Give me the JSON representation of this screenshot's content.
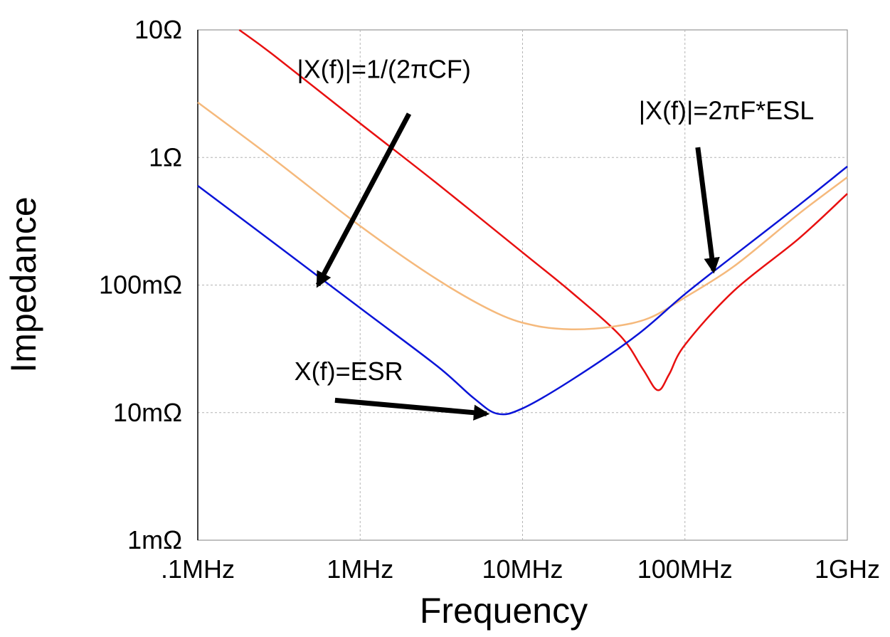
{
  "chart_data": {
    "type": "line",
    "title": "",
    "xlabel": "Frequency",
    "ylabel": "Impedance",
    "xscale": "log",
    "yscale": "log",
    "xlim": [
      100000,
      1000000000
    ],
    "ylim": [
      0.001,
      10
    ],
    "grid": true,
    "x_ticks": [
      {
        "value": 100000,
        "label": ".1MHz"
      },
      {
        "value": 1000000,
        "label": "1MHz"
      },
      {
        "value": 10000000,
        "label": "10MHz"
      },
      {
        "value": 100000000,
        "label": "100MHz"
      },
      {
        "value": 1000000000,
        "label": "1GHz"
      }
    ],
    "y_ticks": [
      {
        "value": 10,
        "label": "10Ω"
      },
      {
        "value": 1,
        "label": "1Ω"
      },
      {
        "value": 0.1,
        "label": "100mΩ"
      },
      {
        "value": 0.01,
        "label": "10mΩ"
      },
      {
        "value": 0.001,
        "label": "1mΩ"
      }
    ],
    "series": [
      {
        "color": "#e81010",
        "points": [
          [
            180000,
            10
          ],
          [
            300000,
            6.2
          ],
          [
            1000000,
            1.85
          ],
          [
            3000000,
            0.62
          ],
          [
            10000000,
            0.18
          ],
          [
            20000000,
            0.088
          ],
          [
            40000000,
            0.04
          ],
          [
            55000000,
            0.022
          ],
          [
            68000000,
            0.015
          ],
          [
            80000000,
            0.02
          ],
          [
            100000000,
            0.034
          ],
          [
            200000000,
            0.09
          ],
          [
            500000000,
            0.23
          ],
          [
            1000000000,
            0.52
          ]
        ]
      },
      {
        "color": "#f5b97c",
        "points": [
          [
            100000,
            2.7
          ],
          [
            300000,
            0.95
          ],
          [
            1000000,
            0.29
          ],
          [
            3000000,
            0.11
          ],
          [
            7000000,
            0.06
          ],
          [
            12000000,
            0.048
          ],
          [
            20000000,
            0.045
          ],
          [
            35000000,
            0.047
          ],
          [
            60000000,
            0.055
          ],
          [
            100000000,
            0.08
          ],
          [
            200000000,
            0.14
          ],
          [
            500000000,
            0.36
          ],
          [
            1000000000,
            0.7
          ]
        ]
      },
      {
        "color": "#0a14d8",
        "points": [
          [
            100000,
            0.6
          ],
          [
            300000,
            0.21
          ],
          [
            1000000,
            0.066
          ],
          [
            3000000,
            0.023
          ],
          [
            5000000,
            0.013
          ],
          [
            7000000,
            0.0098
          ],
          [
            10000000,
            0.0108
          ],
          [
            20000000,
            0.018
          ],
          [
            50000000,
            0.04
          ],
          [
            100000000,
            0.085
          ],
          [
            200000000,
            0.17
          ],
          [
            500000000,
            0.42
          ],
          [
            1000000000,
            0.85
          ]
        ]
      }
    ],
    "annotations": [
      {
        "text": "|X(f)|=1/(2πCF)",
        "anchor": [
          1400000,
          4.2
        ],
        "arrow_tail": [
          2000000,
          2.2
        ],
        "arrow_head": [
          550000,
          0.1
        ]
      },
      {
        "text": "|X(f)|=2πF*ESL",
        "anchor": [
          180000000,
          2.0
        ],
        "arrow_tail": [
          120000000,
          1.2
        ],
        "arrow_head": [
          150000000,
          0.13
        ]
      },
      {
        "text": "X(f)=ESR",
        "anchor": [
          850000,
          0.018
        ],
        "arrow_tail": [
          700000,
          0.0125
        ],
        "arrow_head": [
          6000000,
          0.0098
        ]
      }
    ]
  }
}
